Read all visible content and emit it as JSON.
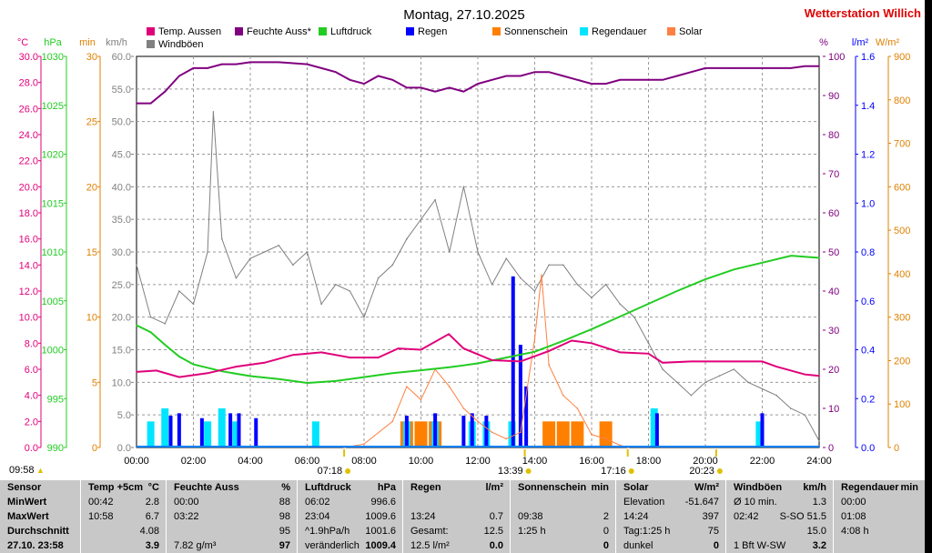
{
  "chart_data": {
    "type": "line",
    "title": "Montag, 27.10.2025",
    "station": "Wetterstation Willich",
    "legend": [
      {
        "name": "Temp. Aussen",
        "color": "#e0007a"
      },
      {
        "name": "Feuchte Auss*",
        "color": "#800080"
      },
      {
        "name": "Luftdruck",
        "color": "#22cc22"
      },
      {
        "name": "Regen",
        "color": "#0000ff"
      },
      {
        "name": "Sonnenschein",
        "color": "#ff8000"
      },
      {
        "name": "Regendauer",
        "color": "#00e5ff"
      },
      {
        "name": "Solar",
        "color": "#ff8040"
      },
      {
        "name": "Windböen",
        "color": "#808080"
      }
    ],
    "x_ticks": [
      "00:00",
      "02:00",
      "04:00",
      "06:00",
      "08:00",
      "10:00",
      "12:00",
      "14:00",
      "16:00",
      "18:00",
      "20:00",
      "22:00",
      "24:00"
    ],
    "axes": {
      "temp": {
        "label": "°C",
        "color": "#e0007a",
        "ticks": [
          "30.0",
          "28.0",
          "26.0",
          "24.0",
          "22.0",
          "20.0",
          "18.0",
          "16.0",
          "14.0",
          "12.0",
          "10.0",
          "8.0",
          "6.0",
          "4.0",
          "2.0",
          "0.0"
        ],
        "range": [
          0,
          30
        ]
      },
      "pressure": {
        "label": "hPa",
        "color": "#22cc22",
        "ticks": [
          "1030",
          "1025",
          "1020",
          "1015",
          "1010",
          "1005",
          "1000",
          "995",
          "990"
        ],
        "range": [
          990,
          1030
        ]
      },
      "minutes": {
        "label": "min",
        "color": "#e08000",
        "ticks": [
          "30",
          "25",
          "20",
          "15",
          "10",
          "5",
          "0"
        ],
        "range": [
          0,
          30
        ]
      },
      "wind": {
        "label": "km/h",
        "color": "#808080",
        "ticks": [
          "60.0",
          "55.0",
          "50.0",
          "45.0",
          "40.0",
          "35.0",
          "30.0",
          "25.0",
          "20.0",
          "15.0",
          "10.0",
          "5.0",
          "0.0"
        ],
        "range": [
          0,
          60
        ]
      },
      "humidity": {
        "label": "%",
        "color": "#800080",
        "ticks": [
          "100",
          "90",
          "80",
          "70",
          "60",
          "50",
          "40",
          "30",
          "20",
          "10",
          "0"
        ],
        "range": [
          0,
          100
        ]
      },
      "rain": {
        "label": "l/m²",
        "color": "#0000ff",
        "ticks": [
          "1.6",
          "1.4",
          "1.2",
          "1.0",
          "0.8",
          "0.6",
          "0.4",
          "0.2",
          "0.0"
        ],
        "range": [
          0,
          1.6
        ]
      },
      "solar": {
        "label": "W/m²",
        "color": "#e08000",
        "ticks": [
          "900",
          "800",
          "700",
          "600",
          "500",
          "400",
          "300",
          "200",
          "100",
          "0"
        ],
        "range": [
          0,
          900
        ]
      }
    },
    "series": [
      {
        "name": "Temp. Aussen",
        "axis": "temp",
        "x": [
          0,
          0.7,
          1.5,
          2.5,
          3.5,
          4.5,
          5.5,
          6.5,
          7.5,
          8.5,
          9.2,
          10,
          10.98,
          11.5,
          12.5,
          13.5,
          14.5,
          15.3,
          16,
          17,
          18,
          18.5,
          19.5,
          21,
          22,
          22.5,
          23.5,
          24
        ],
        "y": [
          5.8,
          5.9,
          5.4,
          5.7,
          6.2,
          6.5,
          7.1,
          7.3,
          6.9,
          6.9,
          7.6,
          7.5,
          8.7,
          7.6,
          6.7,
          6.6,
          7.4,
          8.2,
          8.0,
          7.3,
          7.2,
          6.5,
          6.6,
          6.6,
          6.6,
          6.2,
          5.6,
          5.5
        ]
      },
      {
        "name": "Feuchte Auss*",
        "axis": "humidity",
        "x": [
          0,
          0.5,
          1,
          1.5,
          2,
          2.5,
          3,
          3.5,
          4,
          5,
          6,
          6.5,
          7,
          7.5,
          8,
          8.5,
          9,
          9.5,
          10,
          10.5,
          11,
          11.5,
          12,
          12.5,
          13,
          13.5,
          14,
          14.5,
          15,
          15.5,
          16,
          16.5,
          17,
          17.5,
          18,
          18.5,
          19,
          19.5,
          20,
          21,
          22,
          23,
          23.5,
          24
        ],
        "y": [
          88,
          88,
          91,
          95,
          97,
          97,
          98,
          98,
          98.5,
          98.5,
          98,
          97,
          96,
          94,
          93,
          95,
          94,
          92,
          92,
          91,
          92,
          91,
          93,
          94,
          95,
          95,
          96,
          96,
          95,
          94,
          93,
          93,
          94,
          94,
          94,
          94,
          95,
          96,
          97,
          97,
          97,
          97,
          97.5,
          97.5
        ]
      },
      {
        "name": "Luftdruck",
        "axis": "pressure",
        "x": [
          0,
          0.5,
          1,
          1.5,
          2,
          3,
          4,
          5,
          6,
          6.03,
          7,
          8,
          9,
          10,
          11,
          12,
          13,
          14,
          15,
          16,
          17,
          18,
          19,
          20,
          21,
          22,
          23,
          23.07,
          24
        ],
        "y": [
          1002.5,
          1001.8,
          1000.5,
          999.3,
          998.5,
          997.8,
          997.3,
          997,
          996.6,
          996.6,
          996.8,
          997.2,
          997.6,
          997.9,
          998.2,
          998.6,
          999.2,
          999.8,
          1000.9,
          1002.1,
          1003.4,
          1004.7,
          1006,
          1007.2,
          1008.2,
          1008.9,
          1009.6,
          1009.6,
          1009.4
        ]
      },
      {
        "name": "Regen",
        "axis": "rain",
        "x": [
          1.2,
          1.5,
          2.3,
          3.3,
          3.6,
          4.2,
          9.5,
          10.5,
          11.5,
          11.8,
          12.3,
          13.24,
          13.5,
          13.7,
          18.3,
          22.0
        ],
        "y": [
          0.13,
          0.14,
          0.12,
          0.14,
          0.14,
          0.12,
          0.13,
          0.14,
          0.13,
          0.14,
          0.13,
          0.7,
          0.42,
          0.25,
          0.14,
          0.14
        ]
      },
      {
        "name": "Sonnenschein",
        "axis": "minutes",
        "x": [
          9.5,
          10,
          10.5,
          14.5,
          15,
          15.5,
          16.5
        ],
        "y": [
          2,
          2,
          2,
          2,
          2,
          2,
          2
        ]
      },
      {
        "name": "Regendauer",
        "axis": "minutes",
        "x": [
          0.5,
          1,
          2.5,
          3,
          3.5,
          6.3,
          9.5,
          10.5,
          11.8,
          12.3,
          13.2,
          18.2,
          21.9
        ],
        "y": [
          2,
          3,
          2,
          3,
          2,
          2,
          2,
          2,
          2,
          2,
          2,
          3,
          2
        ]
      },
      {
        "name": "Solar",
        "axis": "solar",
        "x": [
          7.3,
          8,
          9,
          9.5,
          10,
          10.5,
          11,
          11.5,
          12,
          12.5,
          13,
          13.5,
          14,
          14.24,
          14.5,
          15,
          15.5,
          16,
          16.5,
          17,
          17.3
        ],
        "y": [
          0,
          8,
          60,
          140,
          110,
          180,
          140,
          90,
          60,
          35,
          20,
          35,
          250,
          397,
          190,
          120,
          90,
          30,
          20,
          5,
          0
        ]
      },
      {
        "name": "Windböen",
        "axis": "wind",
        "x": [
          0,
          0.5,
          1,
          1.5,
          2,
          2.5,
          2.7,
          3,
          3.5,
          4,
          4.5,
          5,
          5.5,
          6,
          6.5,
          7,
          7.5,
          8,
          8.5,
          9,
          9.5,
          10,
          10.5,
          11,
          11.5,
          12,
          12.5,
          13,
          13.5,
          14,
          14.5,
          15,
          15.5,
          16,
          16.5,
          17,
          17.5,
          18,
          18.5,
          19,
          19.5,
          20,
          20.5,
          21,
          21.5,
          22,
          22.5,
          23,
          23.5,
          24
        ],
        "y": [
          28,
          20,
          19,
          24,
          22,
          30,
          51.5,
          32,
          26,
          29,
          30,
          31,
          28,
          30,
          22,
          25,
          24,
          20,
          26,
          28,
          32,
          35,
          38,
          30,
          40,
          30,
          25,
          29,
          26,
          24,
          28,
          28,
          25,
          23,
          25,
          22,
          20,
          16,
          12,
          10,
          8,
          10,
          11,
          12,
          10,
          9,
          8,
          6,
          5,
          1
        ]
      }
    ]
  },
  "markers": {
    "sunrise": "07:18",
    "noon": "13:39",
    "sunset": "17:16",
    "moon": "20:23"
  },
  "status": {
    "time": "09:58"
  },
  "stats": {
    "headers": [
      "Sensor",
      "Temp +5cm",
      "°C",
      "Feuchte Auss",
      "%",
      "Luftdruck",
      "hPa",
      "Regen",
      "l/m²",
      "Sonnenschein",
      "min",
      "Solar",
      "W/m²",
      "Windböen",
      "km/h",
      "Regendauer",
      "min"
    ],
    "rows": [
      [
        "MinWert",
        "00:42",
        "2.8",
        "00:00",
        "88",
        "06:02",
        "996.6",
        "",
        "",
        "",
        "",
        "Elevation",
        "-51.647",
        "Ø 10 min.",
        "1.3",
        "00:00",
        ""
      ],
      [
        "MaxWert",
        "10:58",
        "6.7",
        "03:22",
        "98",
        "23:04",
        "1009.6",
        "13:24",
        "0.7",
        "09:38",
        "2",
        "14:24",
        "397",
        "02:42",
        "S-SO 51.5",
        "01:08",
        ""
      ],
      [
        "Durchschnitt",
        "",
        "4.08",
        "",
        "95",
        "^1.9hPa/h",
        "1001.6",
        "Gesamt:",
        "12.5",
        "1:25 h",
        "0",
        "Tag:1:25 h",
        "75",
        "",
        "15.0",
        "4:08 h",
        ""
      ],
      [
        "27.10. 23:58",
        "",
        "3.9",
        "7.82 g/m³",
        "97",
        "veränderlich",
        "1009.4",
        "12.5 l/m²",
        "0.0",
        "",
        "0",
        "dunkel",
        "0",
        "1 Bft W-SW",
        "3.2",
        "",
        ""
      ]
    ]
  }
}
